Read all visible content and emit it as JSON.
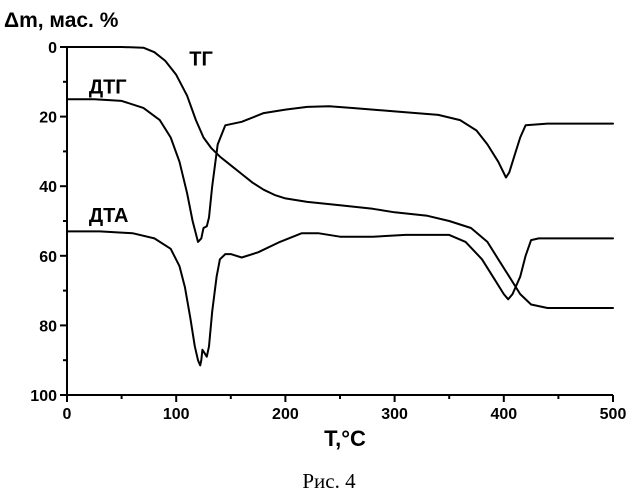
{
  "chart_data": {
    "type": "line",
    "ylabel": "Δm, мас. %",
    "xlabel": "T,°C",
    "caption": "Рис. 4",
    "xlim": [
      0,
      500
    ],
    "ylim": [
      0,
      100
    ],
    "y_inverted": true,
    "x_ticks": [
      "0",
      "100",
      "200",
      "300",
      "400",
      "500"
    ],
    "y_ticks": [
      "0",
      "20",
      "40",
      "60",
      "80",
      "100"
    ],
    "grid": false,
    "legend": "none",
    "series": [
      {
        "name": "ТГ",
        "label_at": [
          112,
          3
        ],
        "points": [
          [
            0,
            0
          ],
          [
            50,
            0
          ],
          [
            70,
            0.2
          ],
          [
            80,
            1.5
          ],
          [
            90,
            4
          ],
          [
            100,
            8
          ],
          [
            110,
            14
          ],
          [
            118,
            21
          ],
          [
            125,
            26
          ],
          [
            132,
            29
          ],
          [
            140,
            31.5
          ],
          [
            150,
            34
          ],
          [
            160,
            36.5
          ],
          [
            170,
            39
          ],
          [
            180,
            41
          ],
          [
            190,
            42.5
          ],
          [
            200,
            43.5
          ],
          [
            220,
            44.5
          ],
          [
            250,
            45.5
          ],
          [
            280,
            46.5
          ],
          [
            300,
            47.5
          ],
          [
            330,
            48.5
          ],
          [
            350,
            50
          ],
          [
            370,
            52
          ],
          [
            385,
            56
          ],
          [
            395,
            61
          ],
          [
            405,
            66
          ],
          [
            415,
            71
          ],
          [
            425,
            74
          ],
          [
            440,
            75
          ],
          [
            470,
            75
          ],
          [
            500,
            75
          ]
        ]
      },
      {
        "name": "ДТГ",
        "label_at": [
          20,
          11
        ],
        "points": [
          [
            0,
            15
          ],
          [
            25,
            15
          ],
          [
            50,
            15.5
          ],
          [
            70,
            17.5
          ],
          [
            85,
            21
          ],
          [
            95,
            26
          ],
          [
            103,
            33
          ],
          [
            110,
            42
          ],
          [
            115,
            50
          ],
          [
            120,
            56
          ],
          [
            123,
            55
          ],
          [
            125,
            52
          ],
          [
            128,
            51.5
          ],
          [
            130,
            49
          ],
          [
            133,
            40
          ],
          [
            138,
            28
          ],
          [
            145,
            22.5
          ],
          [
            160,
            21.5
          ],
          [
            180,
            19
          ],
          [
            200,
            18
          ],
          [
            220,
            17.2
          ],
          [
            240,
            17
          ],
          [
            260,
            17.5
          ],
          [
            280,
            18
          ],
          [
            300,
            18.5
          ],
          [
            320,
            19
          ],
          [
            340,
            19.5
          ],
          [
            360,
            21
          ],
          [
            375,
            24
          ],
          [
            385,
            28
          ],
          [
            395,
            33
          ],
          [
            402,
            37.5
          ],
          [
            405,
            36
          ],
          [
            410,
            31
          ],
          [
            415,
            26
          ],
          [
            420,
            22.5
          ],
          [
            440,
            22
          ],
          [
            500,
            22
          ]
        ]
      },
      {
        "name": "ДТА",
        "label_at": [
          20,
          48
        ],
        "points": [
          [
            0,
            53
          ],
          [
            30,
            53
          ],
          [
            60,
            53.5
          ],
          [
            80,
            55
          ],
          [
            95,
            58
          ],
          [
            103,
            63
          ],
          [
            108,
            69
          ],
          [
            113,
            78
          ],
          [
            117,
            86
          ],
          [
            120,
            90
          ],
          [
            122,
            91.5
          ],
          [
            123,
            90
          ],
          [
            124,
            87
          ],
          [
            126,
            88
          ],
          [
            128,
            89
          ],
          [
            130,
            86
          ],
          [
            133,
            76
          ],
          [
            137,
            66
          ],
          [
            140,
            61
          ],
          [
            145,
            59.5
          ],
          [
            150,
            59.5
          ],
          [
            160,
            60.5
          ],
          [
            175,
            59
          ],
          [
            195,
            56
          ],
          [
            215,
            53.5
          ],
          [
            230,
            53.5
          ],
          [
            250,
            54.5
          ],
          [
            280,
            54.5
          ],
          [
            310,
            54
          ],
          [
            350,
            54
          ],
          [
            365,
            56
          ],
          [
            380,
            61
          ],
          [
            392,
            67
          ],
          [
            400,
            71
          ],
          [
            404,
            72.5
          ],
          [
            408,
            71
          ],
          [
            415,
            66
          ],
          [
            420,
            60
          ],
          [
            425,
            55.5
          ],
          [
            432,
            55
          ],
          [
            500,
            55
          ]
        ]
      }
    ]
  }
}
